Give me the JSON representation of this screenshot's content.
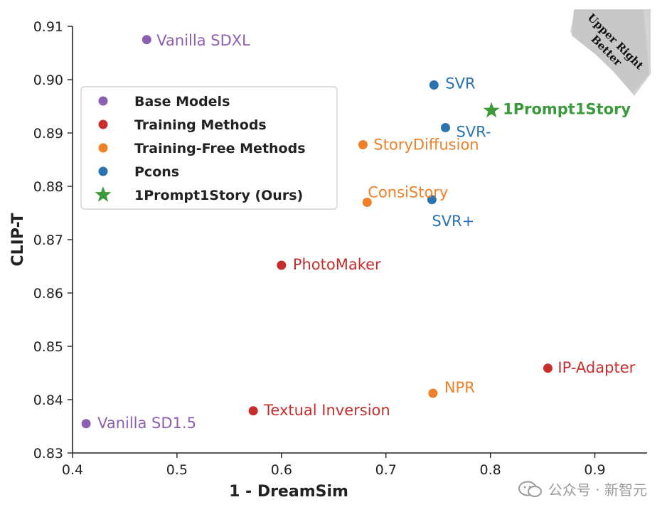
{
  "chart_data": {
    "type": "scatter",
    "xlabel": "1 - DreamSim",
    "ylabel": "CLIP-T",
    "xlim": [
      0.4,
      0.95
    ],
    "ylim": [
      0.83,
      0.91
    ],
    "x_ticks": [
      "0.4",
      "0.5",
      "0.6",
      "0.7",
      "0.8",
      "0.9"
    ],
    "y_ticks": [
      "0.83",
      "0.84",
      "0.85",
      "0.86",
      "0.87",
      "0.88",
      "0.89",
      "0.90",
      "0.91"
    ],
    "grid": false,
    "legend_position": "top-left",
    "series": [
      {
        "name": "Base Models",
        "color": "#8c5fb0",
        "marker": "circle",
        "points": [
          {
            "label": "Vanilla SDXL",
            "x": 0.471,
            "y": 0.9075
          },
          {
            "label": "Vanilla SD1.5",
            "x": 0.413,
            "y": 0.8355
          }
        ]
      },
      {
        "name": "Training Methods",
        "color": "#c62d2d",
        "marker": "circle",
        "points": [
          {
            "label": "PhotoMaker",
            "x": 0.6,
            "y": 0.8652
          },
          {
            "label": "IP-Adapter",
            "x": 0.855,
            "y": 0.8459
          },
          {
            "label": "Textual Inversion",
            "x": 0.573,
            "y": 0.8379
          }
        ]
      },
      {
        "name": "Training-Free Methods",
        "color": "#ee8027",
        "marker": "circle",
        "points": [
          {
            "label": "StoryDiffusion",
            "x": 0.678,
            "y": 0.8878
          },
          {
            "label": "ConsiStory",
            "x": 0.682,
            "y": 0.877
          },
          {
            "label": "NPR",
            "x": 0.745,
            "y": 0.8412
          }
        ]
      },
      {
        "name": "Pcons",
        "color": "#2b73b0",
        "marker": "circle",
        "points": [
          {
            "label": "SVR",
            "x": 0.746,
            "y": 0.899
          },
          {
            "label": "SVR-",
            "x": 0.757,
            "y": 0.891
          },
          {
            "label": "SVR+",
            "x": 0.744,
            "y": 0.8775
          }
        ]
      },
      {
        "name": "1Prompt1Story (Ours)",
        "color": "#3b9a3b",
        "marker": "star",
        "points": [
          {
            "label": "1Prompt1Story",
            "x": 0.801,
            "y": 0.8942
          }
        ]
      }
    ],
    "annotation": "Upper Right Better"
  },
  "watermark": "公众号 · 新智元"
}
